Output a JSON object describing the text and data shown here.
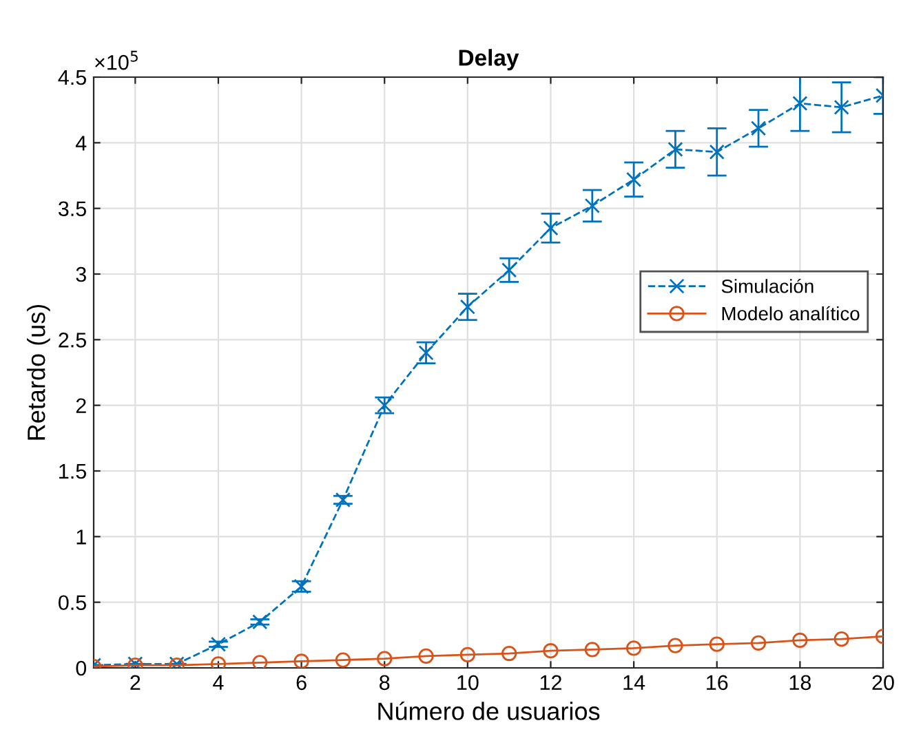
{
  "chart_data": {
    "type": "line",
    "title": "Delay",
    "xlabel": "Número de usuarios",
    "ylabel": "Retardo (us)",
    "annotations": [
      "×10$^{5}$"
    ],
    "x": [
      1,
      2,
      3,
      4,
      5,
      6,
      7,
      8,
      9,
      10,
      11,
      12,
      13,
      14,
      15,
      16,
      17,
      18,
      19,
      20
    ],
    "series": [
      {
        "name": "Simulación",
        "color": "#0072bd",
        "marker": "cross",
        "line_style": "dashed",
        "values": [
          0.02,
          0.03,
          0.03,
          0.18,
          0.35,
          0.62,
          1.28,
          2.0,
          2.4,
          2.75,
          3.03,
          3.35,
          3.52,
          3.72,
          3.95,
          3.93,
          4.11,
          4.3,
          4.27,
          4.36
        ],
        "errors": [
          null,
          null,
          null,
          0.02,
          0.02,
          0.04,
          0.03,
          0.06,
          0.08,
          0.1,
          0.09,
          0.11,
          0.12,
          0.13,
          0.14,
          0.18,
          0.14,
          0.21,
          0.19,
          0.14
        ]
      },
      {
        "name": "Modelo analítico",
        "color": "#d95319",
        "marker": "circle",
        "line_style": "solid",
        "values": [
          0.01,
          0.02,
          0.02,
          0.03,
          0.04,
          0.05,
          0.06,
          0.07,
          0.09,
          0.1,
          0.11,
          0.13,
          0.14,
          0.15,
          0.17,
          0.18,
          0.19,
          0.21,
          0.22,
          0.24
        ]
      }
    ],
    "xlim": [
      1,
      20
    ],
    "xticks": [
      2,
      4,
      6,
      8,
      10,
      12,
      14,
      16,
      18,
      20
    ],
    "ylim": [
      0,
      4.5
    ],
    "yticks": [
      0,
      0.5,
      1,
      1.5,
      2,
      2.5,
      3,
      3.5,
      4,
      4.5
    ],
    "grid": true,
    "legend": "right"
  }
}
